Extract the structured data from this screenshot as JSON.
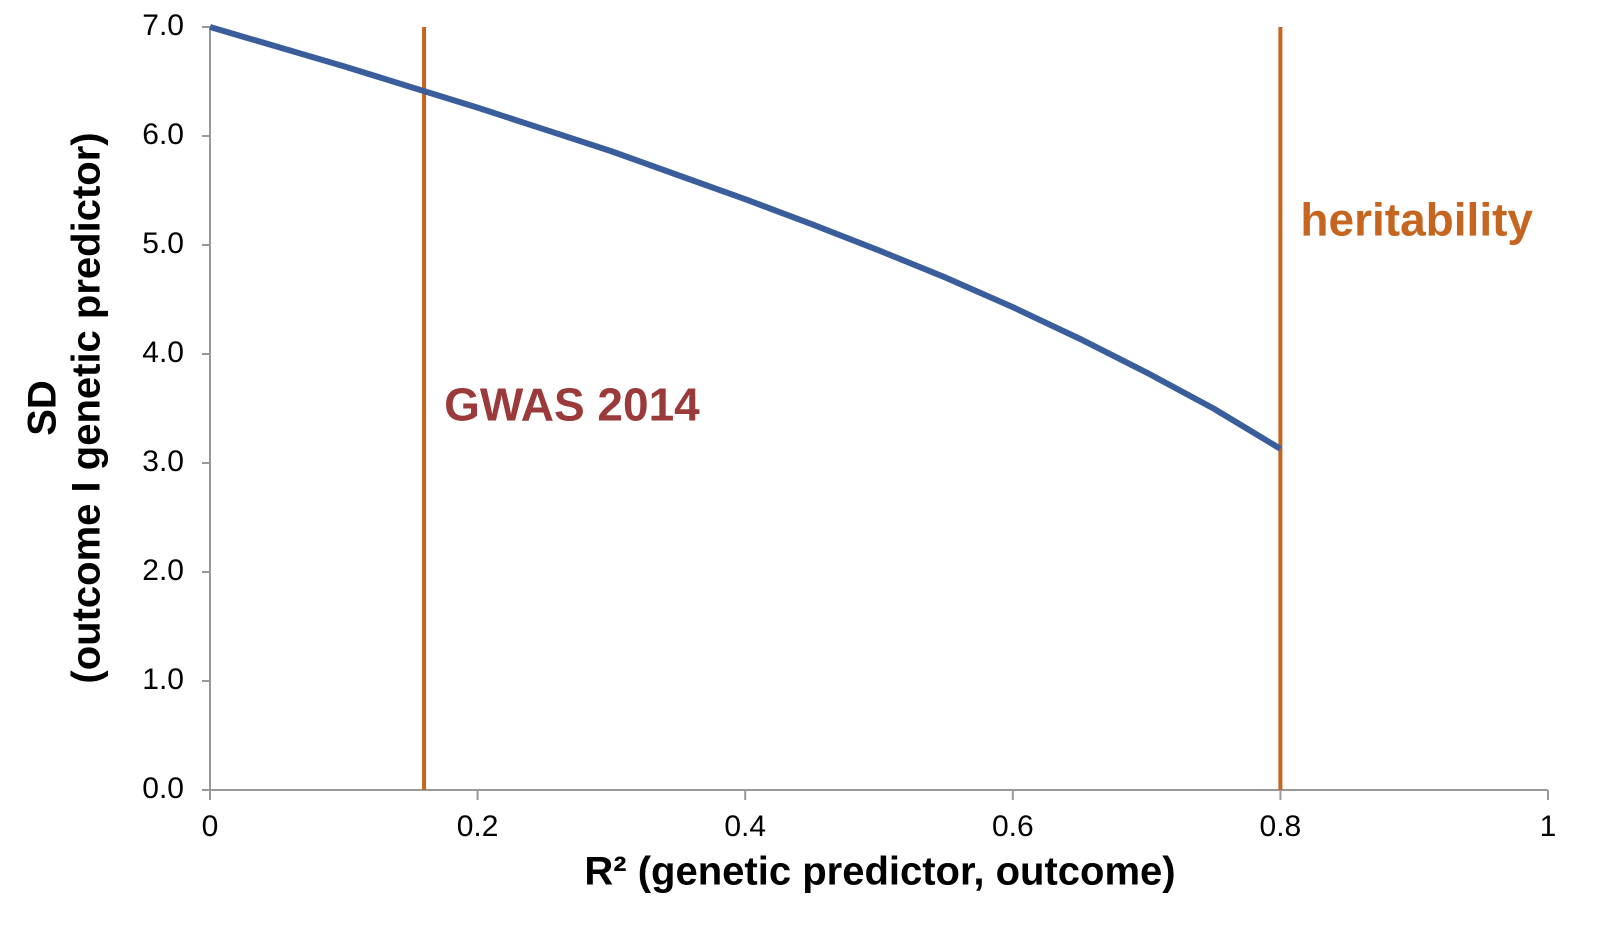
{
  "chart_data": {
    "type": "line",
    "x_label": "R² (genetic predictor, outcome)",
    "y_label": [
      "SD",
      "(outcome I genetic predictor)"
    ],
    "x": [
      0,
      0.05,
      0.1,
      0.15,
      0.2,
      0.25,
      0.3,
      0.35,
      0.4,
      0.45,
      0.5,
      0.55,
      0.6,
      0.65,
      0.7,
      0.75,
      0.8
    ],
    "series": [
      {
        "color": "#3a5e9c",
        "values": [
          7.0,
          6.82,
          6.64,
          6.45,
          6.26,
          6.06,
          5.86,
          5.64,
          5.42,
          5.19,
          4.95,
          4.7,
          4.43,
          4.14,
          3.83,
          3.5,
          3.13
        ]
      }
    ],
    "xlim": [
      0,
      1
    ],
    "xticks": [
      0,
      0.2,
      0.4,
      0.6,
      0.8,
      1
    ],
    "ylim": [
      0,
      7
    ],
    "yticks": [
      {
        "value": 0,
        "label": "0.0"
      },
      {
        "value": 1,
        "label": "1.0"
      },
      {
        "value": 2,
        "label": "2.0"
      },
      {
        "value": 3,
        "label": "3.0"
      },
      {
        "value": 4,
        "label": "4.0"
      },
      {
        "value": 5,
        "label": "5.0"
      },
      {
        "value": 6,
        "label": "6.0"
      },
      {
        "value": 7,
        "label": "7.0"
      }
    ],
    "vlines": [
      {
        "x": 0.16,
        "label": "GWAS 2014",
        "color": "#c5651f",
        "label_color": "#9b3a3a",
        "label_y": 3.5
      },
      {
        "x": 0.8,
        "label": "heritability",
        "color": "#c5651f",
        "label_color": "#c5651f",
        "label_y": 5.2
      }
    ]
  }
}
